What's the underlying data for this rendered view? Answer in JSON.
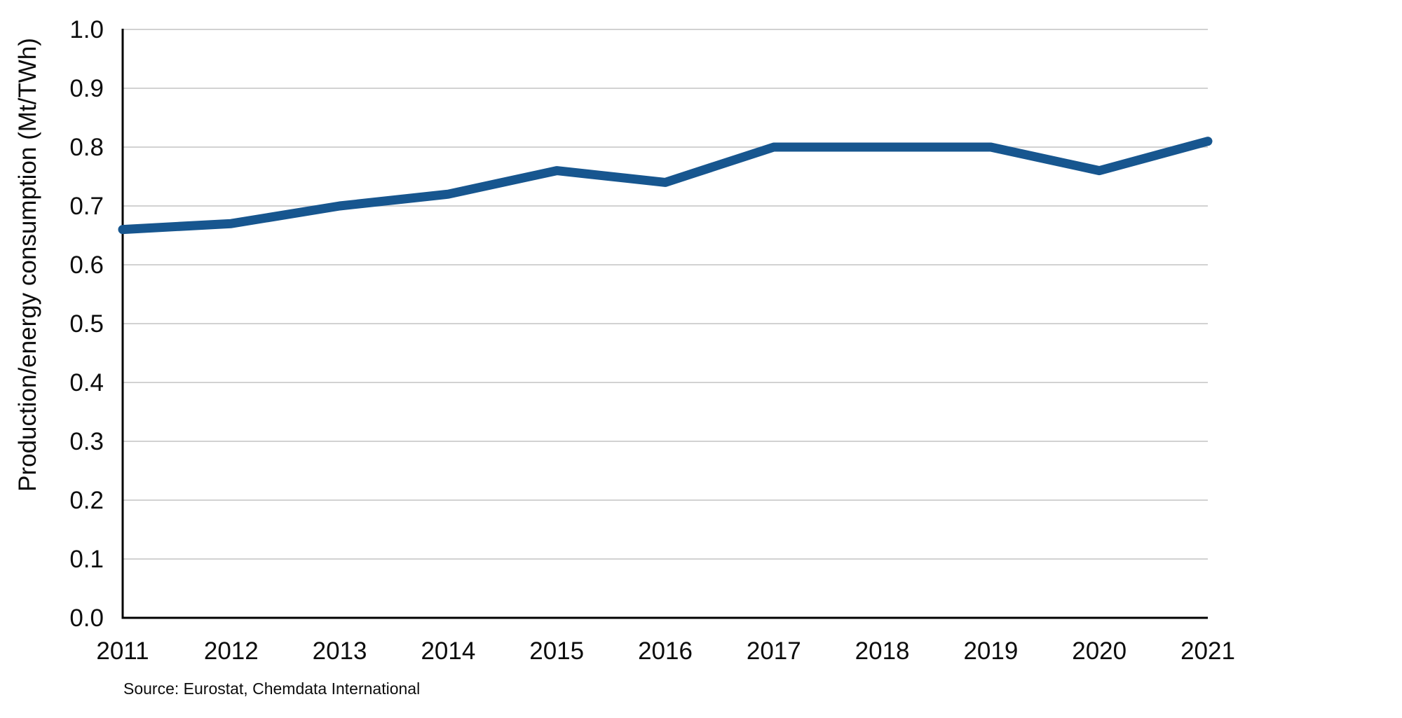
{
  "chart_data": {
    "type": "line",
    "title": "",
    "xlabel": "",
    "ylabel": "Production/energy consumption (Mt/TWh)",
    "categories": [
      "2011",
      "2012",
      "2013",
      "2014",
      "2015",
      "2016",
      "2017",
      "2018",
      "2019",
      "2020",
      "2021"
    ],
    "series": [
      {
        "name": "Production/energy consumption (Mt/TWh)",
        "values": [
          0.66,
          0.67,
          0.7,
          0.72,
          0.76,
          0.74,
          0.8,
          0.8,
          0.8,
          0.76,
          0.81
        ]
      }
    ],
    "ylim": [
      0.0,
      1.0
    ],
    "ytick_step": 0.1,
    "ytick_format": "one-decimal",
    "grid": "horizontal",
    "legend_position": "none",
    "source_note": "Source: Eurostat, Chemdata International",
    "colors": {
      "line": "#17568F",
      "grid": "#D2D2D2",
      "axis": "#000000",
      "text": "#0D0D0D"
    }
  }
}
